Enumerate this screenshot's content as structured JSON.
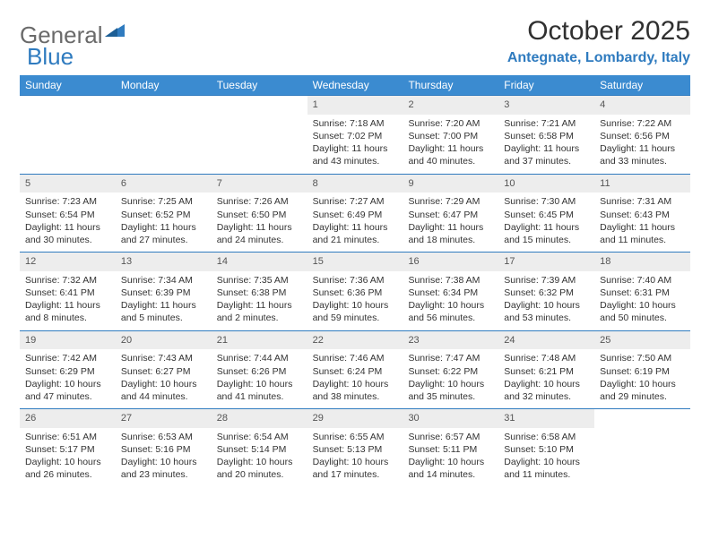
{
  "logo": {
    "word1": "General",
    "word2": "Blue"
  },
  "title": "October 2025",
  "location": "Antegnate, Lombardy, Italy",
  "colors": {
    "header_bg": "#3b8bd0",
    "header_text": "#ffffff",
    "row_border": "#2f7bbf",
    "daynum_bg": "#ededed",
    "daynum_text": "#555555",
    "accent": "#2f7bbf",
    "body_text": "#333333",
    "logo_gray": "#6a6a6a"
  },
  "day_headers": [
    "Sunday",
    "Monday",
    "Tuesday",
    "Wednesday",
    "Thursday",
    "Friday",
    "Saturday"
  ],
  "weeks": [
    [
      {
        "n": "",
        "lines": []
      },
      {
        "n": "",
        "lines": []
      },
      {
        "n": "",
        "lines": []
      },
      {
        "n": "1",
        "lines": [
          "Sunrise: 7:18 AM",
          "Sunset: 7:02 PM",
          "Daylight: 11 hours and 43 minutes."
        ]
      },
      {
        "n": "2",
        "lines": [
          "Sunrise: 7:20 AM",
          "Sunset: 7:00 PM",
          "Daylight: 11 hours and 40 minutes."
        ]
      },
      {
        "n": "3",
        "lines": [
          "Sunrise: 7:21 AM",
          "Sunset: 6:58 PM",
          "Daylight: 11 hours and 37 minutes."
        ]
      },
      {
        "n": "4",
        "lines": [
          "Sunrise: 7:22 AM",
          "Sunset: 6:56 PM",
          "Daylight: 11 hours and 33 minutes."
        ]
      }
    ],
    [
      {
        "n": "5",
        "lines": [
          "Sunrise: 7:23 AM",
          "Sunset: 6:54 PM",
          "Daylight: 11 hours and 30 minutes."
        ]
      },
      {
        "n": "6",
        "lines": [
          "Sunrise: 7:25 AM",
          "Sunset: 6:52 PM",
          "Daylight: 11 hours and 27 minutes."
        ]
      },
      {
        "n": "7",
        "lines": [
          "Sunrise: 7:26 AM",
          "Sunset: 6:50 PM",
          "Daylight: 11 hours and 24 minutes."
        ]
      },
      {
        "n": "8",
        "lines": [
          "Sunrise: 7:27 AM",
          "Sunset: 6:49 PM",
          "Daylight: 11 hours and 21 minutes."
        ]
      },
      {
        "n": "9",
        "lines": [
          "Sunrise: 7:29 AM",
          "Sunset: 6:47 PM",
          "Daylight: 11 hours and 18 minutes."
        ]
      },
      {
        "n": "10",
        "lines": [
          "Sunrise: 7:30 AM",
          "Sunset: 6:45 PM",
          "Daylight: 11 hours and 15 minutes."
        ]
      },
      {
        "n": "11",
        "lines": [
          "Sunrise: 7:31 AM",
          "Sunset: 6:43 PM",
          "Daylight: 11 hours and 11 minutes."
        ]
      }
    ],
    [
      {
        "n": "12",
        "lines": [
          "Sunrise: 7:32 AM",
          "Sunset: 6:41 PM",
          "Daylight: 11 hours and 8 minutes."
        ]
      },
      {
        "n": "13",
        "lines": [
          "Sunrise: 7:34 AM",
          "Sunset: 6:39 PM",
          "Daylight: 11 hours and 5 minutes."
        ]
      },
      {
        "n": "14",
        "lines": [
          "Sunrise: 7:35 AM",
          "Sunset: 6:38 PM",
          "Daylight: 11 hours and 2 minutes."
        ]
      },
      {
        "n": "15",
        "lines": [
          "Sunrise: 7:36 AM",
          "Sunset: 6:36 PM",
          "Daylight: 10 hours and 59 minutes."
        ]
      },
      {
        "n": "16",
        "lines": [
          "Sunrise: 7:38 AM",
          "Sunset: 6:34 PM",
          "Daylight: 10 hours and 56 minutes."
        ]
      },
      {
        "n": "17",
        "lines": [
          "Sunrise: 7:39 AM",
          "Sunset: 6:32 PM",
          "Daylight: 10 hours and 53 minutes."
        ]
      },
      {
        "n": "18",
        "lines": [
          "Sunrise: 7:40 AM",
          "Sunset: 6:31 PM",
          "Daylight: 10 hours and 50 minutes."
        ]
      }
    ],
    [
      {
        "n": "19",
        "lines": [
          "Sunrise: 7:42 AM",
          "Sunset: 6:29 PM",
          "Daylight: 10 hours and 47 minutes."
        ]
      },
      {
        "n": "20",
        "lines": [
          "Sunrise: 7:43 AM",
          "Sunset: 6:27 PM",
          "Daylight: 10 hours and 44 minutes."
        ]
      },
      {
        "n": "21",
        "lines": [
          "Sunrise: 7:44 AM",
          "Sunset: 6:26 PM",
          "Daylight: 10 hours and 41 minutes."
        ]
      },
      {
        "n": "22",
        "lines": [
          "Sunrise: 7:46 AM",
          "Sunset: 6:24 PM",
          "Daylight: 10 hours and 38 minutes."
        ]
      },
      {
        "n": "23",
        "lines": [
          "Sunrise: 7:47 AM",
          "Sunset: 6:22 PM",
          "Daylight: 10 hours and 35 minutes."
        ]
      },
      {
        "n": "24",
        "lines": [
          "Sunrise: 7:48 AM",
          "Sunset: 6:21 PM",
          "Daylight: 10 hours and 32 minutes."
        ]
      },
      {
        "n": "25",
        "lines": [
          "Sunrise: 7:50 AM",
          "Sunset: 6:19 PM",
          "Daylight: 10 hours and 29 minutes."
        ]
      }
    ],
    [
      {
        "n": "26",
        "lines": [
          "Sunrise: 6:51 AM",
          "Sunset: 5:17 PM",
          "Daylight: 10 hours and 26 minutes."
        ]
      },
      {
        "n": "27",
        "lines": [
          "Sunrise: 6:53 AM",
          "Sunset: 5:16 PM",
          "Daylight: 10 hours and 23 minutes."
        ]
      },
      {
        "n": "28",
        "lines": [
          "Sunrise: 6:54 AM",
          "Sunset: 5:14 PM",
          "Daylight: 10 hours and 20 minutes."
        ]
      },
      {
        "n": "29",
        "lines": [
          "Sunrise: 6:55 AM",
          "Sunset: 5:13 PM",
          "Daylight: 10 hours and 17 minutes."
        ]
      },
      {
        "n": "30",
        "lines": [
          "Sunrise: 6:57 AM",
          "Sunset: 5:11 PM",
          "Daylight: 10 hours and 14 minutes."
        ]
      },
      {
        "n": "31",
        "lines": [
          "Sunrise: 6:58 AM",
          "Sunset: 5:10 PM",
          "Daylight: 10 hours and 11 minutes."
        ]
      },
      {
        "n": "",
        "lines": []
      }
    ]
  ]
}
